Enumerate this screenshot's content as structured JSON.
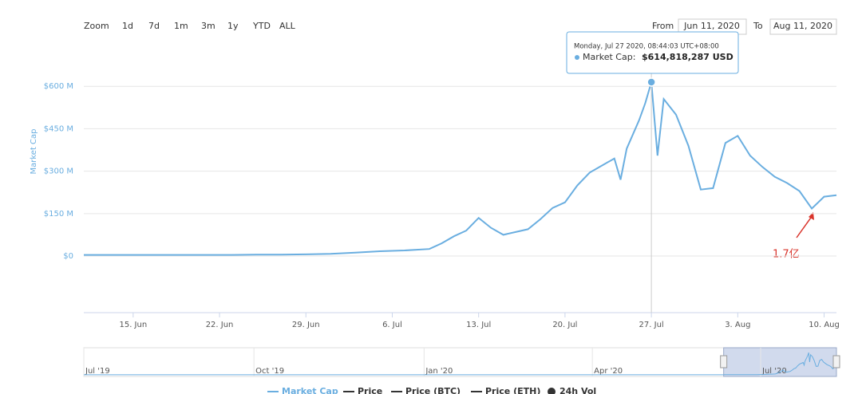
{
  "chart_data": {
    "type": "line",
    "range_selector": {
      "zoom_label": "Zoom",
      "buttons": [
        "1d",
        "7d",
        "1m",
        "3m",
        "1y",
        "YTD",
        "ALL"
      ],
      "from_label": "From",
      "from": "Jun 11, 2020",
      "to_label": "To",
      "to": "Aug 11, 2020"
    },
    "y_label": "Market Cap",
    "xlim": [
      "2020-06-11",
      "2020-08-11"
    ],
    "xticks": [
      {
        "value": "2020-06-15",
        "label": "15. Jun"
      },
      {
        "value": "2020-06-22",
        "label": "22. Jun"
      },
      {
        "value": "2020-06-29",
        "label": "29. Jun"
      },
      {
        "value": "2020-07-06",
        "label": "6. Jul"
      },
      {
        "value": "2020-07-13",
        "label": "13. Jul"
      },
      {
        "value": "2020-07-20",
        "label": "20. Jul"
      },
      {
        "value": "2020-07-27",
        "label": "27. Jul"
      },
      {
        "value": "2020-08-03",
        "label": "3. Aug"
      },
      {
        "value": "2020-08-10",
        "label": "10. Aug"
      }
    ],
    "ylim": [
      -200,
      750
    ],
    "yticks": [
      {
        "value": 0,
        "label": "$0"
      },
      {
        "value": 150,
        "label": "$150 M"
      },
      {
        "value": 300,
        "label": "$300 M"
      },
      {
        "value": 450,
        "label": "$450 M"
      },
      {
        "value": 600,
        "label": "$600 M"
      }
    ],
    "grid": true,
    "series": [
      {
        "name": "Market Cap",
        "color": "#6aaee0",
        "x": [
          "2020-06-11",
          "2020-06-13",
          "2020-06-15",
          "2020-06-17",
          "2020-06-19",
          "2020-06-21",
          "2020-06-23",
          "2020-06-25",
          "2020-06-27",
          "2020-06-29",
          "2020-07-01",
          "2020-07-03",
          "2020-07-05",
          "2020-07-07",
          "2020-07-09",
          "2020-07-10",
          "2020-07-11",
          "2020-07-12",
          "2020-07-13",
          "2020-07-14",
          "2020-07-15",
          "2020-07-16",
          "2020-07-17",
          "2020-07-18",
          "2020-07-19",
          "2020-07-20",
          "2020-07-21",
          "2020-07-22",
          "2020-07-23",
          "2020-07-24",
          "2020-07-24T12",
          "2020-07-25",
          "2020-07-26",
          "2020-07-26T12",
          "2020-07-27",
          "2020-07-27T12",
          "2020-07-28",
          "2020-07-29",
          "2020-07-30",
          "2020-07-31",
          "2020-08-01",
          "2020-08-02",
          "2020-08-03",
          "2020-08-04",
          "2020-08-05",
          "2020-08-06",
          "2020-08-07",
          "2020-08-08",
          "2020-08-09",
          "2020-08-10",
          "2020-08-11"
        ],
        "values": [
          4,
          4,
          4,
          4,
          4,
          4,
          4,
          5,
          5,
          6,
          8,
          12,
          17,
          20,
          25,
          45,
          70,
          90,
          135,
          100,
          75,
          85,
          95,
          130,
          170,
          190,
          250,
          295,
          320,
          345,
          270,
          380,
          480,
          540,
          614.818287,
          355,
          555,
          500,
          390,
          235,
          240,
          400,
          425,
          355,
          315,
          280,
          258,
          230,
          168,
          210,
          215
        ]
      }
    ],
    "tooltip": {
      "date": "Monday, Jul 27 2020, 08:44:03 UTC+08:00",
      "label": "Market Cap:",
      "value": "$614,818,287 USD",
      "point": 34
    },
    "annotation": "1.7亿",
    "navigator": {
      "xlim": [
        "2019-07-01",
        "2020-08-11"
      ],
      "xticks": [
        {
          "value": "2019-07-01",
          "label": "Jul '19"
        },
        {
          "value": "2019-10-01",
          "label": "Oct '19"
        },
        {
          "value": "2020-01-01",
          "label": "Jan '20"
        },
        {
          "value": "2020-04-01",
          "label": "Apr '20"
        },
        {
          "value": "2020-07-01",
          "label": "Jul '20"
        }
      ]
    },
    "legend": [
      "Market Cap",
      "Price",
      "Price (BTC)",
      "Price (ETH)",
      "24h Vol"
    ]
  }
}
